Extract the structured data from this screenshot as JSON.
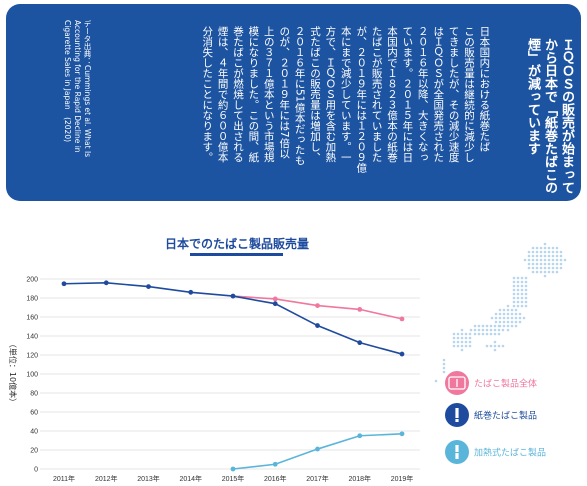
{
  "panel": {
    "heading_lines": [
      "ＩＱＯＳの販売が始まって",
      "から日本で「紙巻たばこの",
      "煙」が減っています"
    ],
    "body_lines": [
      "日本国内における紙巻たば",
      "この販売量は継続的に減少し",
      "てきましたが、その減少速度",
      "はＩＱＯＳが全国発売された",
      "２０１６年以降、大きくなっ",
      "ています。２０１５年には日",
      "本国内で１８２３億本の紙巻",
      "たばこが販売されていました",
      "が、２０１９年には１２０９億",
      "本にまで減少しています。一",
      "方で、ＩＱＯＳ用を含む加熱",
      "式たばこの販売量は増加し、",
      "２０１６年に51億本だったも",
      "のが、２０１９年には7倍以",
      "上の３７１億本という市場規",
      "模になりました。この間、紙",
      "巻たばこが燃焼して出される",
      "煙は、４年間で約６００億本",
      "分消失したことになります。"
    ],
    "source_lines": [
      "データ出典：Cummings et al. What Is",
      "Accounting for the Rapid Decline in",
      "Cigarette Sales in Japan　(2020)"
    ]
  },
  "colors": {
    "panel": "#1d54a1",
    "total": "#f0779d",
    "cigarette": "#1f4b9e",
    "heated": "#5ab5da",
    "title": "#1f4b9e",
    "grid": "#cccccc",
    "map": "#b7d6ec"
  },
  "chart_data": {
    "type": "line",
    "title": "日本でのたばこ製品販売量",
    "ylabel": "（単位：10億本）",
    "categories": [
      "2011年",
      "2012年",
      "2013年",
      "2014年",
      "2015年",
      "2016年",
      "2017年",
      "2018年",
      "2019年"
    ],
    "ylim": [
      0,
      200
    ],
    "yticks": [
      0,
      20,
      40,
      60,
      80,
      100,
      120,
      140,
      160,
      180,
      200
    ],
    "grid": true,
    "series": [
      {
        "key": "total",
        "name": "たばこ製品全体",
        "icon": "total-pack-icon",
        "values": [
          null,
          null,
          null,
          null,
          182,
          179,
          172,
          168,
          158
        ]
      },
      {
        "key": "cigarette",
        "name": "紙巻たばこ製品",
        "icon": "cigarette-icon",
        "values": [
          195,
          196,
          192,
          186,
          182,
          174,
          151,
          133,
          121
        ]
      },
      {
        "key": "heated",
        "name": "加熱式たばこ製品",
        "icon": "heated-stick-icon",
        "values": [
          null,
          null,
          null,
          null,
          0,
          5,
          21,
          35,
          37
        ]
      }
    ]
  }
}
